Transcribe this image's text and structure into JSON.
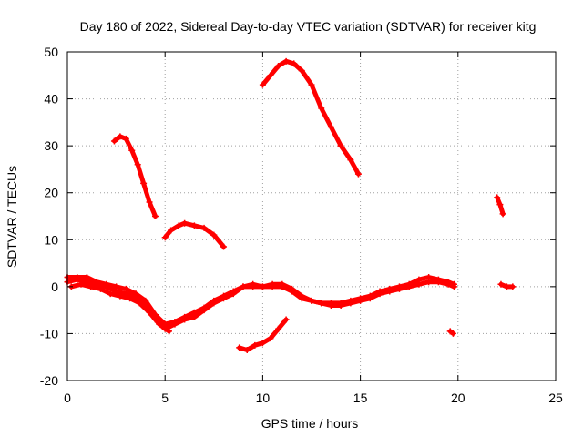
{
  "chart_data": {
    "type": "scatter",
    "title": "Day 180 of 2022, Sidereal Day-to-day VTEC variation (SDTVAR) for receiver kitg",
    "xlabel": "GPS time / hours",
    "ylabel": "SDTVAR / TECUs",
    "xlim": [
      0,
      25
    ],
    "ylim": [
      -20,
      50
    ],
    "x_ticks": [
      0,
      5,
      10,
      15,
      20,
      25
    ],
    "y_ticks": [
      -20,
      -10,
      0,
      10,
      20,
      30,
      40,
      50
    ],
    "grid": true,
    "series_color": "#ff0000",
    "series": [
      {
        "name": "arc-1",
        "x": [
          2.4,
          2.7,
          3.0,
          3.3,
          3.6,
          3.9,
          4.2,
          4.5
        ],
        "y": [
          31,
          32,
          31.5,
          29,
          26,
          22,
          18,
          15
        ]
      },
      {
        "name": "arc-2",
        "x": [
          5.0,
          5.3,
          5.7,
          6.0,
          6.5,
          7.0,
          7.5,
          8.0
        ],
        "y": [
          10.5,
          12,
          13,
          13.5,
          13,
          12.5,
          11,
          8.5
        ]
      },
      {
        "name": "arc-3",
        "x": [
          10.0,
          10.4,
          10.8,
          11.2,
          11.6,
          12.0,
          12.5,
          13.0,
          13.5,
          14.0,
          14.5,
          14.9
        ],
        "y": [
          43,
          45,
          47,
          48,
          47.5,
          46,
          43,
          38,
          34,
          30,
          27,
          24
        ]
      },
      {
        "name": "arc-4",
        "x": [
          8.8,
          9.2,
          9.6,
          10.0,
          10.4,
          10.8,
          11.2
        ],
        "y": [
          -13,
          -13.5,
          -12.5,
          -12,
          -11,
          -9,
          -7
        ]
      },
      {
        "name": "arc-5",
        "x": [
          22.0,
          22.15,
          22.3
        ],
        "y": [
          19,
          17.5,
          15.5
        ]
      },
      {
        "name": "arc-6",
        "x": [
          19.6,
          19.75
        ],
        "y": [
          -9.5,
          -10
        ]
      },
      {
        "name": "arc-7",
        "x": [
          22.2,
          22.5,
          22.8
        ],
        "y": [
          0.5,
          0,
          0
        ]
      },
      {
        "name": "band-1",
        "x": [
          0,
          0.5,
          1.0,
          1.5,
          2.0,
          2.5,
          3.0,
          3.5,
          4.0,
          4.5,
          5.0,
          5.5,
          6.0,
          6.5,
          7.0,
          7.5,
          8.0,
          8.5,
          9.0,
          9.5,
          10.0,
          10.5,
          11.0,
          11.5,
          12.0,
          12.5,
          13.0,
          13.5,
          14.0,
          14.5,
          15.0,
          15.5,
          16.0,
          16.5,
          17.0,
          17.5,
          18.0,
          18.5,
          19.0,
          19.5,
          19.8
        ],
        "y": [
          1,
          1.5,
          1,
          0.5,
          0,
          -1,
          -1.5,
          -2.5,
          -4,
          -7,
          -9,
          -8,
          -7,
          -6.5,
          -5,
          -3.5,
          -2.5,
          -1.5,
          0,
          0,
          0,
          0,
          0,
          -1,
          -2.5,
          -3,
          -3.5,
          -4,
          -4,
          -3.5,
          -3,
          -2.5,
          -1.5,
          -1,
          -0.5,
          0,
          0.5,
          1,
          1,
          0.5,
          0
        ]
      },
      {
        "name": "band-2",
        "x": [
          0,
          0.5,
          1.0,
          1.5,
          2.0,
          2.5,
          3.0,
          3.5,
          4.0,
          4.5,
          5.0,
          5.5,
          6.0,
          6.5,
          7.0,
          7.5,
          8.0,
          8.5,
          9.0,
          9.5,
          10.0,
          10.5,
          11.0,
          11.5,
          12.0,
          12.5,
          13.0,
          13.5,
          14.0,
          14.5,
          15.0,
          15.5,
          16.0,
          16.5,
          17.0,
          17.5,
          18.0,
          18.5,
          19.0,
          19.5,
          19.8
        ],
        "y": [
          2,
          2,
          2,
          1,
          0.5,
          0,
          -0.5,
          -1.5,
          -3,
          -6,
          -8,
          -7.5,
          -6.5,
          -5.5,
          -4.5,
          -3,
          -2,
          -1,
          0,
          0.5,
          0,
          0.5,
          0.5,
          -0.5,
          -2,
          -3,
          -3.5,
          -3.5,
          -3.5,
          -3,
          -2.5,
          -2,
          -1,
          -0.5,
          0,
          0.5,
          1.5,
          2,
          1.5,
          1,
          0.5
        ]
      },
      {
        "name": "band-3",
        "x": [
          0.2,
          0.7,
          1.2,
          1.7,
          2.2,
          2.7,
          3.2,
          3.7,
          4.2,
          4.7,
          5.2
        ],
        "y": [
          0,
          0.5,
          0,
          -0.5,
          -1.5,
          -2,
          -2.5,
          -3.5,
          -5.5,
          -8,
          -9.5
        ]
      }
    ]
  }
}
